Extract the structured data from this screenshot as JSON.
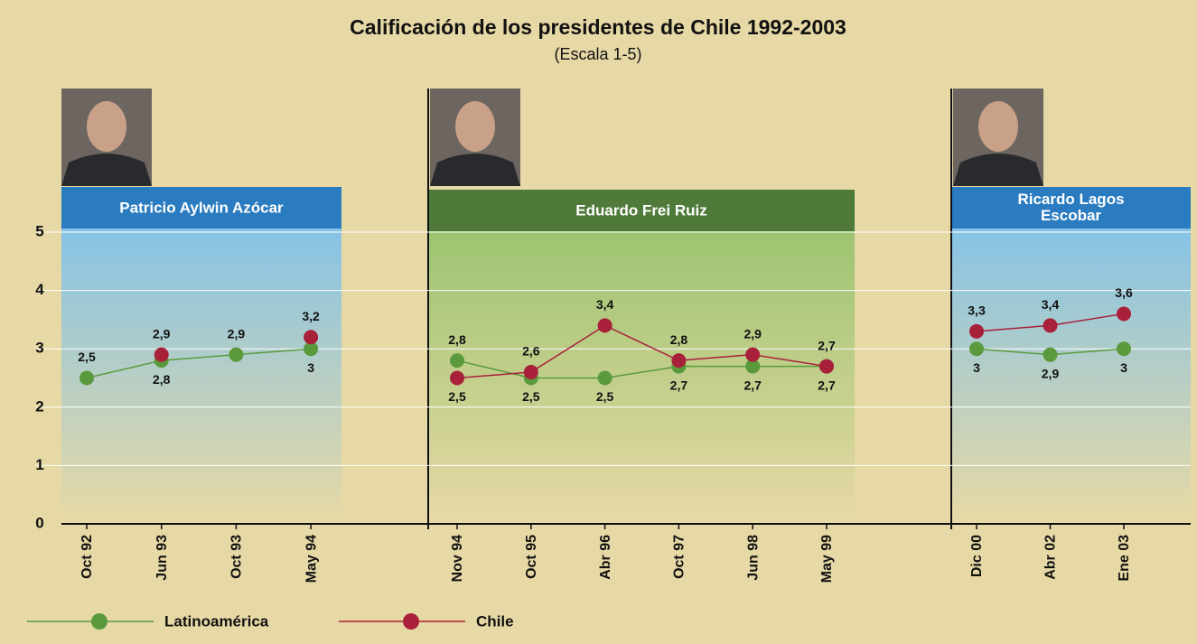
{
  "title": "Calificación de los presidentes de Chile 1992-2003",
  "subtitle": "(Escala 1-5)",
  "chart_data": [
    {
      "type": "line",
      "title": "Patricio Aylwin Azócar",
      "panel_color": "#2a7bbf",
      "categories": [
        "Oct 92",
        "Jun 93",
        "Oct 93",
        "May 94"
      ],
      "ylim": [
        0,
        5
      ],
      "yticks": [
        0,
        1,
        2,
        3,
        4,
        5
      ],
      "grid": true,
      "series": [
        {
          "name": "Latinoamérica",
          "color": "#5a9a3c",
          "values": [
            2.5,
            2.8,
            2.9,
            3
          ],
          "value_labels": [
            "2,5",
            "2,8",
            "2,9",
            "3"
          ]
        },
        {
          "name": "Chile",
          "color": "#a8203a",
          "values": [
            null,
            2.9,
            null,
            3.2
          ],
          "value_labels": [
            null,
            "2,9",
            null,
            "3,2"
          ]
        }
      ]
    },
    {
      "type": "line",
      "title": "Eduardo Frei Ruiz",
      "panel_color": "#4f7a3a",
      "categories": [
        "Nov 94",
        "Oct 95",
        "Abr 96",
        "Oct 97",
        "Jun 98",
        "May 99"
      ],
      "series": [
        {
          "color": "#5a9a3c",
          "values": [
            2.8,
            2.5,
            2.5,
            2.7,
            2.7,
            2.7
          ],
          "value_labels": [
            "2,8",
            "2,5",
            "2,5",
            "2,7",
            "2,7",
            "2,7"
          ]
        },
        {
          "color": "#a8203a",
          "values": [
            2.5,
            2.6,
            3.4,
            2.8,
            2.9,
            2.7
          ],
          "value_labels": [
            "2,5",
            "2,6",
            "3,4",
            "2,8",
            "2,9",
            "2,7"
          ]
        }
      ]
    },
    {
      "type": "line",
      "title": "Ricardo Lagos Escobar",
      "panel_color": "#2a7bbf",
      "categories": [
        "Dic 00",
        "Abr 02",
        "Ene 03"
      ],
      "series": [
        {
          "color": "#5a9a3c",
          "values": [
            3,
            2.9,
            3
          ],
          "value_labels": [
            "3",
            "2,9",
            "3"
          ]
        },
        {
          "color": "#a8203a",
          "values": [
            3.3,
            3.4,
            3.6
          ],
          "value_labels": [
            "3,3",
            "3,4",
            "3,6"
          ]
        }
      ]
    }
  ]
}
